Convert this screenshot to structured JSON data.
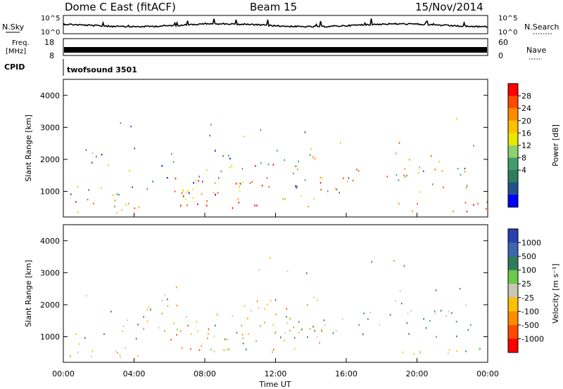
{
  "header": {
    "site": "Dome C East (fitACF)",
    "beam": "Beam 15",
    "date": "15/Nov/2014"
  },
  "top_panels": {
    "nsky_label": "N.Sky",
    "nsearch_label": "N.Search",
    "nsky_ticks": [
      "10^5",
      "10^0"
    ],
    "nsearch_ticks": [
      "10^5",
      "10^0"
    ],
    "freq_label_1": "Freq.",
    "freq_label_2": "[MHz]",
    "freq_ticks": [
      "18",
      "8"
    ],
    "nave_label": "Nave",
    "nave_ticks": [
      "60",
      "0"
    ],
    "cpid_label": "CPID",
    "cpid_value": "twofsound 3501"
  },
  "chart_data": [
    {
      "type": "heatmap",
      "quantity": "power",
      "ylabel": "Slant Range [km]",
      "xlabel": "",
      "ylim": [
        200,
        4500
      ],
      "y_ticks": [
        "4000",
        "3000",
        "2000",
        "1000"
      ],
      "y_tick_values": [
        4000,
        3000,
        2000,
        1000
      ],
      "colorbar_label": "Power [dB]",
      "colorbar_ticks": [
        "28",
        "24",
        "20",
        "16",
        "12",
        "8",
        "4"
      ],
      "colorbar_colors": [
        "#ff0000",
        "#ff4a00",
        "#ff8c00",
        "#ffc000",
        "#e8e800",
        "#8ed26e",
        "#3f9f6a",
        "#2e7d5b",
        "#23508f",
        "#0000ff"
      ]
    },
    {
      "type": "heatmap",
      "quantity": "velocity",
      "ylabel": "Slant Range [km]",
      "xlabel": "Time UT",
      "ylim": [
        200,
        4500
      ],
      "x_ticks": [
        "00:00",
        "04:00",
        "08:00",
        "12:00",
        "16:00",
        "20:00",
        "00:00"
      ],
      "y_ticks": [
        "4000",
        "3000",
        "2000",
        "1000"
      ],
      "y_tick_values": [
        4000,
        3000,
        2000,
        1000
      ],
      "colorbar_label": "Velocity [m s⁻¹]",
      "colorbar_ticks": [
        "1000",
        "500",
        "100",
        "25",
        "-25",
        "-100",
        "-500",
        "-1000"
      ],
      "colorbar_colors": [
        "#2a3fb0",
        "#3f67b0",
        "#2e7d5b",
        "#6ec84a",
        "#c8c8b4",
        "#ffc000",
        "#ff8c00",
        "#ff4a00",
        "#ff0000"
      ]
    }
  ]
}
